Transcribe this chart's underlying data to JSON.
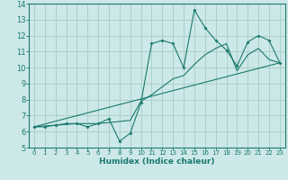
{
  "xlabel": "Humidex (Indice chaleur)",
  "bg_color": "#cde8e8",
  "line_color": "#1a7a6e",
  "grid_color": "#aad0cc",
  "xlim": [
    -0.5,
    23.5
  ],
  "ylim": [
    5,
    14
  ],
  "xticks": [
    0,
    1,
    2,
    3,
    4,
    5,
    6,
    7,
    8,
    9,
    10,
    11,
    12,
    13,
    14,
    15,
    16,
    17,
    18,
    19,
    20,
    21,
    22,
    23
  ],
  "yticks": [
    5,
    6,
    7,
    8,
    9,
    10,
    11,
    12,
    13,
    14
  ],
  "series1_x": [
    0,
    1,
    2,
    3,
    4,
    5,
    6,
    7,
    8,
    9,
    10,
    11,
    12,
    13,
    14,
    15,
    16,
    17,
    18,
    19,
    20,
    21,
    22,
    23
  ],
  "series1_y": [
    6.3,
    6.3,
    6.4,
    6.5,
    6.5,
    6.3,
    6.5,
    6.8,
    5.4,
    5.9,
    7.8,
    11.5,
    11.7,
    11.5,
    10.0,
    13.6,
    12.5,
    11.7,
    11.1,
    10.1,
    11.6,
    12.0,
    11.7,
    10.3
  ],
  "series2_x": [
    0,
    23
  ],
  "series2_y": [
    6.3,
    10.3
  ],
  "series3_x": [
    0,
    2,
    4,
    6,
    9,
    10,
    11,
    12,
    13,
    14,
    15,
    16,
    17,
    18,
    19,
    20,
    21,
    22,
    23
  ],
  "series3_y": [
    6.3,
    6.4,
    6.5,
    6.5,
    6.7,
    7.9,
    8.3,
    8.8,
    9.3,
    9.5,
    10.2,
    10.8,
    11.2,
    11.5,
    9.8,
    10.8,
    11.2,
    10.5,
    10.3
  ]
}
